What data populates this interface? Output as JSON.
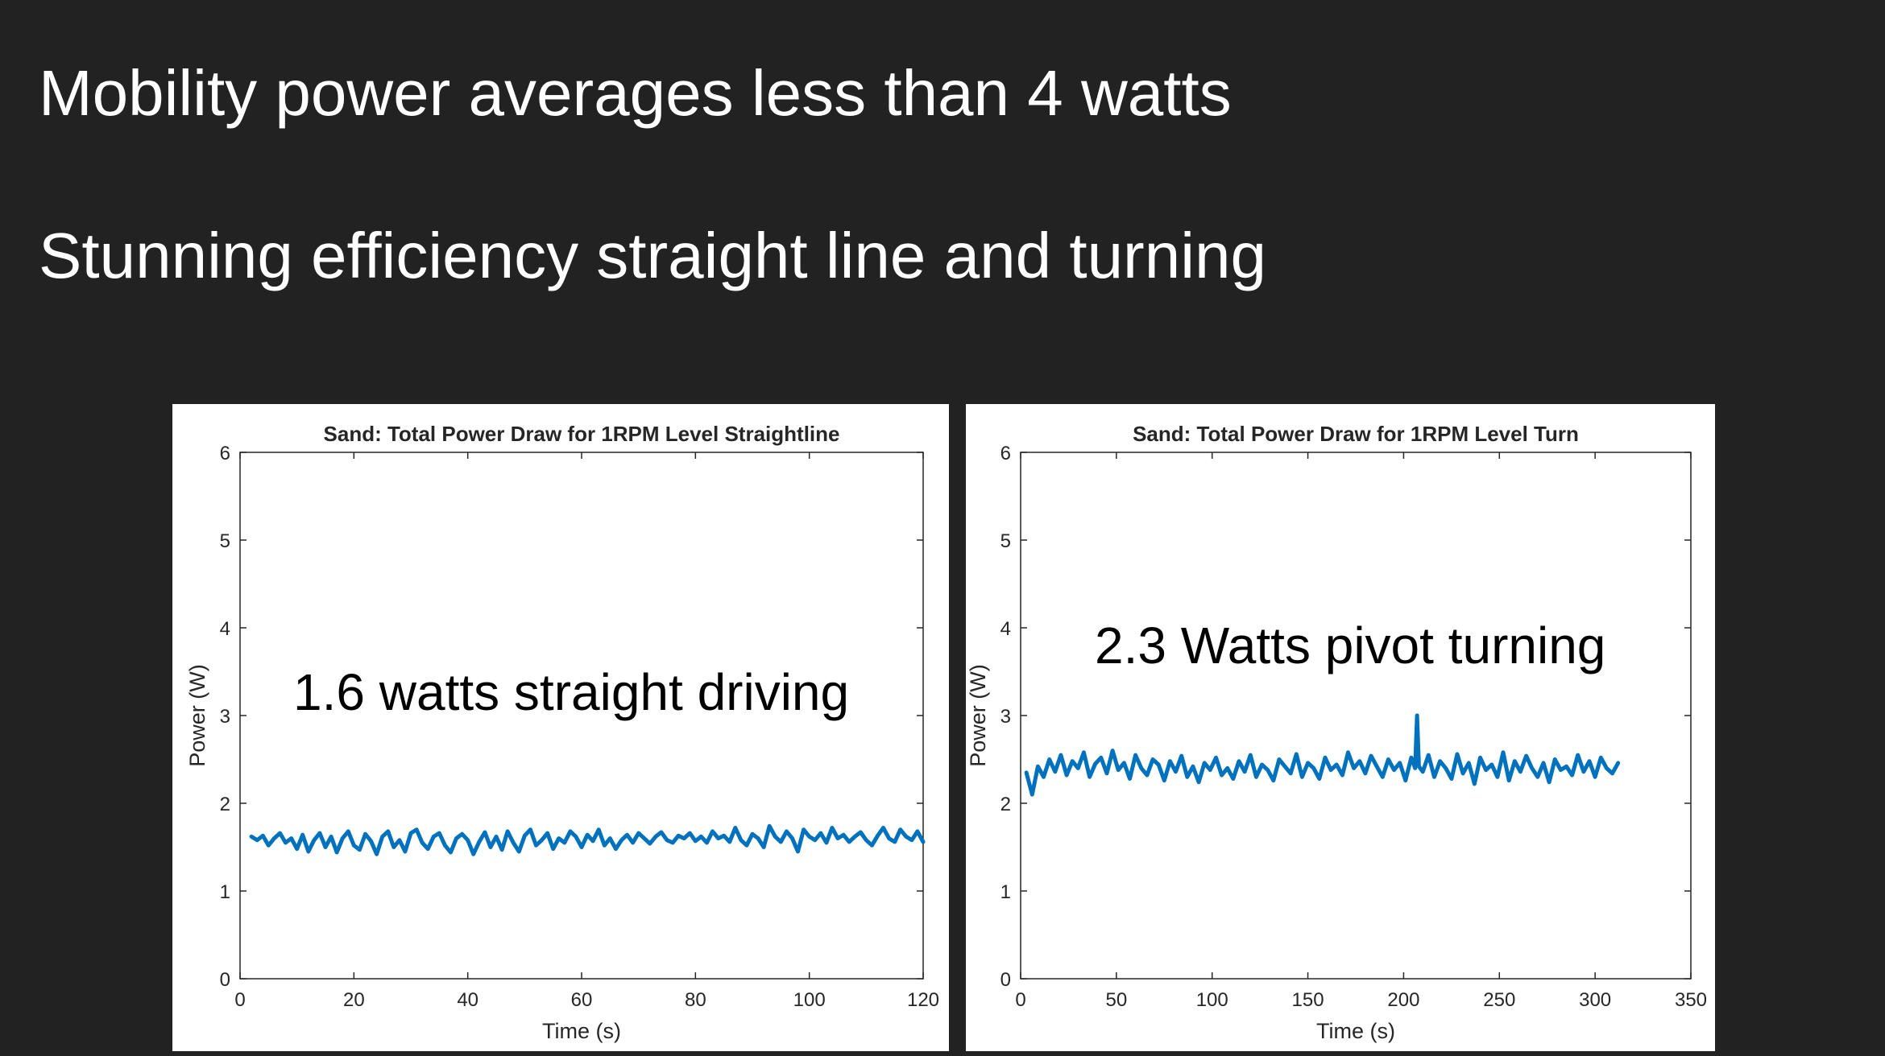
{
  "slide": {
    "headline_1": "Mobility power averages less than 4 watts",
    "headline_2": "Stunning efficiency  straight line and turning"
  },
  "colors": {
    "background": "#222222",
    "headline_text": "#ffffff",
    "series_line": "#0072bd"
  },
  "chart_data": [
    {
      "type": "line",
      "title": "Sand: Total Power Draw for 1RPM Level Straightline",
      "xlabel": "Time (s)",
      "ylabel": "Power (W)",
      "xlim": [
        0,
        120
      ],
      "ylim": [
        0,
        6
      ],
      "xticks": [
        0,
        20,
        40,
        60,
        80,
        100,
        120
      ],
      "yticks": [
        0,
        1,
        2,
        3,
        4,
        5,
        6
      ],
      "grid": false,
      "annotation": "1.6 watts straight driving",
      "series": [
        {
          "x": [
            2,
            3,
            4,
            5,
            6,
            7,
            8,
            9,
            10,
            11,
            12,
            13,
            14,
            15,
            16,
            17,
            18,
            19,
            20,
            21,
            22,
            23,
            24,
            25,
            26,
            27,
            28,
            29,
            30,
            31,
            32,
            33,
            34,
            35,
            36,
            37,
            38,
            39,
            40,
            41,
            42,
            43,
            44,
            45,
            46,
            47,
            48,
            49,
            50,
            51,
            52,
            53,
            54,
            55,
            56,
            57,
            58,
            59,
            60,
            61,
            62,
            63,
            64,
            65,
            66,
            67,
            68,
            69,
            70,
            71,
            72,
            73,
            74,
            75,
            76,
            77,
            78,
            79,
            80,
            81,
            82,
            83,
            84,
            85,
            86,
            87,
            88,
            89,
            90,
            91,
            92,
            93,
            94,
            95,
            96,
            97,
            98,
            99,
            100,
            101,
            102,
            103,
            104,
            105,
            106,
            107,
            108,
            109,
            110,
            111,
            112,
            113,
            114,
            115,
            116,
            117,
            118,
            119,
            120
          ],
          "y": [
            1.62,
            1.58,
            1.63,
            1.52,
            1.6,
            1.66,
            1.55,
            1.6,
            1.48,
            1.64,
            1.45,
            1.58,
            1.66,
            1.5,
            1.62,
            1.44,
            1.6,
            1.68,
            1.52,
            1.47,
            1.65,
            1.57,
            1.42,
            1.62,
            1.68,
            1.5,
            1.58,
            1.45,
            1.66,
            1.7,
            1.55,
            1.48,
            1.62,
            1.66,
            1.52,
            1.44,
            1.6,
            1.65,
            1.58,
            1.42,
            1.56,
            1.67,
            1.5,
            1.62,
            1.47,
            1.68,
            1.55,
            1.45,
            1.63,
            1.7,
            1.52,
            1.58,
            1.66,
            1.48,
            1.6,
            1.55,
            1.68,
            1.62,
            1.5,
            1.64,
            1.57,
            1.7,
            1.52,
            1.6,
            1.48,
            1.58,
            1.64,
            1.55,
            1.66,
            1.6,
            1.54,
            1.62,
            1.67,
            1.58,
            1.55,
            1.63,
            1.6,
            1.66,
            1.57,
            1.62,
            1.55,
            1.68,
            1.6,
            1.63,
            1.56,
            1.72,
            1.58,
            1.52,
            1.65,
            1.6,
            1.5,
            1.74,
            1.62,
            1.56,
            1.68,
            1.6,
            1.45,
            1.7,
            1.62,
            1.58,
            1.66,
            1.55,
            1.72,
            1.6,
            1.64,
            1.56,
            1.62,
            1.67,
            1.58,
            1.52,
            1.63,
            1.72,
            1.6,
            1.56,
            1.7,
            1.62,
            1.58,
            1.68,
            1.56
          ]
        }
      ]
    },
    {
      "type": "line",
      "title": "Sand: Total Power Draw for 1RPM Level Turn",
      "xlabel": "Time (s)",
      "ylabel": "Power (W)",
      "xlim": [
        0,
        350
      ],
      "ylim": [
        0,
        6
      ],
      "xticks": [
        0,
        50,
        100,
        150,
        200,
        250,
        300,
        350
      ],
      "yticks": [
        0,
        1,
        2,
        3,
        4,
        5,
        6
      ],
      "grid": false,
      "annotation": "2.3 Watts pivot turning",
      "series": [
        {
          "x": [
            3,
            6,
            9,
            12,
            15,
            18,
            21,
            24,
            27,
            30,
            33,
            36,
            39,
            42,
            45,
            48,
            51,
            54,
            57,
            60,
            63,
            66,
            69,
            72,
            75,
            78,
            81,
            84,
            87,
            90,
            93,
            96,
            99,
            102,
            105,
            108,
            111,
            114,
            117,
            120,
            123,
            126,
            129,
            132,
            135,
            138,
            141,
            144,
            147,
            150,
            153,
            156,
            159,
            162,
            165,
            168,
            171,
            174,
            177,
            180,
            183,
            186,
            189,
            192,
            195,
            198,
            201,
            204,
            206,
            207,
            208,
            210,
            213,
            216,
            219,
            222,
            225,
            228,
            231,
            234,
            237,
            240,
            243,
            246,
            249,
            252,
            255,
            258,
            261,
            264,
            267,
            270,
            273,
            276,
            279,
            282,
            285,
            288,
            291,
            294,
            297,
            300,
            303,
            306,
            309,
            312
          ],
          "y": [
            2.35,
            2.1,
            2.42,
            2.3,
            2.5,
            2.36,
            2.55,
            2.32,
            2.48,
            2.4,
            2.58,
            2.3,
            2.45,
            2.52,
            2.34,
            2.6,
            2.38,
            2.46,
            2.28,
            2.55,
            2.4,
            2.32,
            2.5,
            2.44,
            2.26,
            2.48,
            2.36,
            2.54,
            2.3,
            2.42,
            2.24,
            2.46,
            2.38,
            2.52,
            2.32,
            2.4,
            2.28,
            2.48,
            2.36,
            2.55,
            2.3,
            2.44,
            2.38,
            2.26,
            2.5,
            2.42,
            2.34,
            2.56,
            2.3,
            2.46,
            2.4,
            2.28,
            2.52,
            2.38,
            2.44,
            2.32,
            2.58,
            2.4,
            2.48,
            2.34,
            2.54,
            2.42,
            2.3,
            2.5,
            2.38,
            2.46,
            2.26,
            2.52,
            2.4,
            3.0,
            2.42,
            2.36,
            2.55,
            2.3,
            2.48,
            2.4,
            2.28,
            2.56,
            2.34,
            2.46,
            2.22,
            2.52,
            2.38,
            2.44,
            2.3,
            2.58,
            2.26,
            2.48,
            2.36,
            2.54,
            2.4,
            2.3,
            2.46,
            2.24,
            2.5,
            2.38,
            2.42,
            2.32,
            2.55,
            2.36,
            2.48,
            2.3,
            2.52,
            2.4,
            2.34,
            2.46
          ]
        }
      ]
    }
  ]
}
